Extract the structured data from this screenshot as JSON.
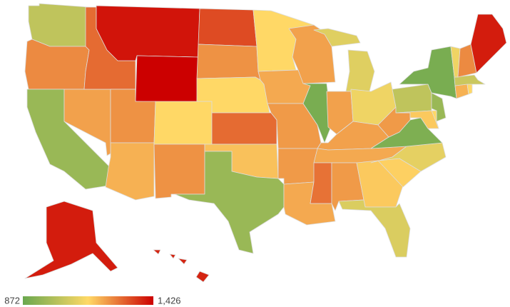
{
  "chart_data": {
    "type": "choropleth",
    "values": [
      1030,
      1250,
      960,
      1220,
      1290,
      1400,
      1426,
      1240,
      1200,
      1150,
      1240,
      1330,
      1240,
      1150,
      1290,
      1180,
      960,
      1150,
      1210,
      1230,
      1230,
      1210,
      1220,
      900,
      1090,
      1220,
      1120,
      1220,
      1210,
      1280,
      1230,
      1170,
      1080,
      1160,
      1100,
      910,
      1230,
      1030,
      900,
      960,
      1170,
      1150,
      1200,
      1150,
      1050,
      1120,
      1250,
      1390,
      1390,
      1380
    ],
    "colors": [
      "#6aa84f",
      "#ffd966",
      "#cc0000"
    ],
    "legend_ticks": [
      872,
      {
        "value": 1426,
        "label": "1,426"
      }
    ]
  }
}
